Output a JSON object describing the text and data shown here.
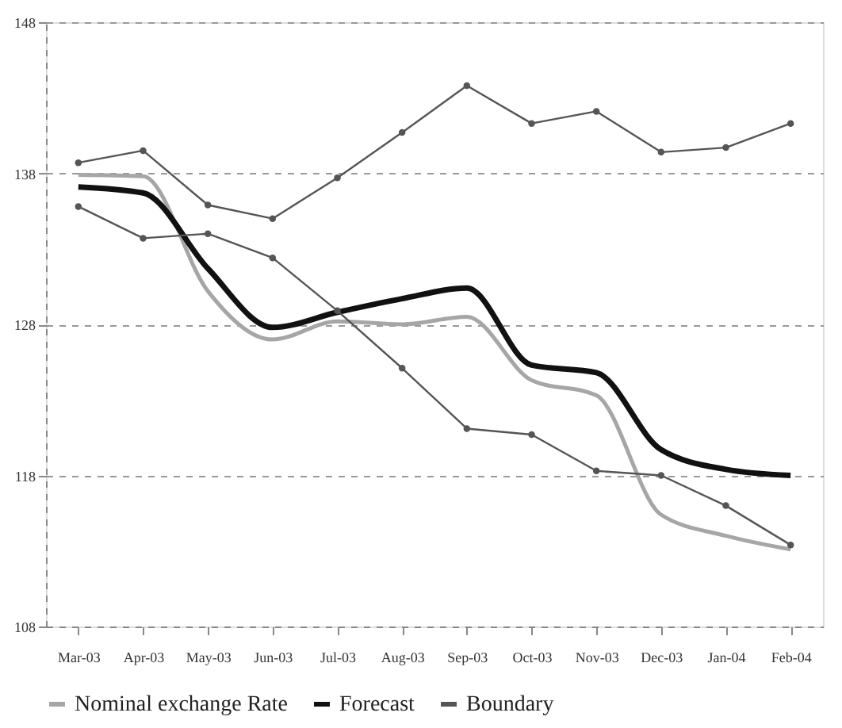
{
  "chart_data": {
    "type": "line",
    "categories": [
      "Mar-03",
      "Apr-03",
      "May-03",
      "Jun-03",
      "Jul-03",
      "Aug-03",
      "Sep-03",
      "Oct-03",
      "Nov-03",
      "Dec-03",
      "Jan-04",
      "Feb-04"
    ],
    "series": [
      {
        "name": "Nominal exchange Rate",
        "color": "#a6a6a6",
        "marker": "none",
        "values": [
          137.9,
          137.8,
          130.2,
          127.0,
          128.2,
          128.0,
          128.5,
          124.3,
          123.3,
          115.4,
          114.0,
          113.1
        ]
      },
      {
        "name": "Forecast",
        "color": "#111111",
        "marker": "none",
        "values": [
          137.1,
          136.7,
          131.7,
          127.8,
          128.8,
          129.7,
          130.4,
          125.3,
          124.8,
          119.7,
          118.4,
          118.0
        ]
      },
      {
        "name": "Boundary",
        "color": "#555555",
        "marker": "circle",
        "values": [
          138.7,
          139.5,
          135.9,
          135.0,
          137.7,
          140.7,
          143.8,
          141.3,
          142.1,
          139.4,
          139.7,
          141.3
        ]
      },
      {
        "color": "#555555",
        "marker": "circle",
        "values": [
          135.8,
          133.7,
          134.0,
          132.4,
          128.9,
          125.1,
          121.1,
          120.7,
          118.3,
          118.0,
          116.0,
          113.4
        ]
      }
    ],
    "ylim": [
      108,
      148
    ],
    "yticks": [
      108,
      118,
      128,
      138,
      148
    ],
    "grid": "y",
    "legend": "bottom"
  }
}
